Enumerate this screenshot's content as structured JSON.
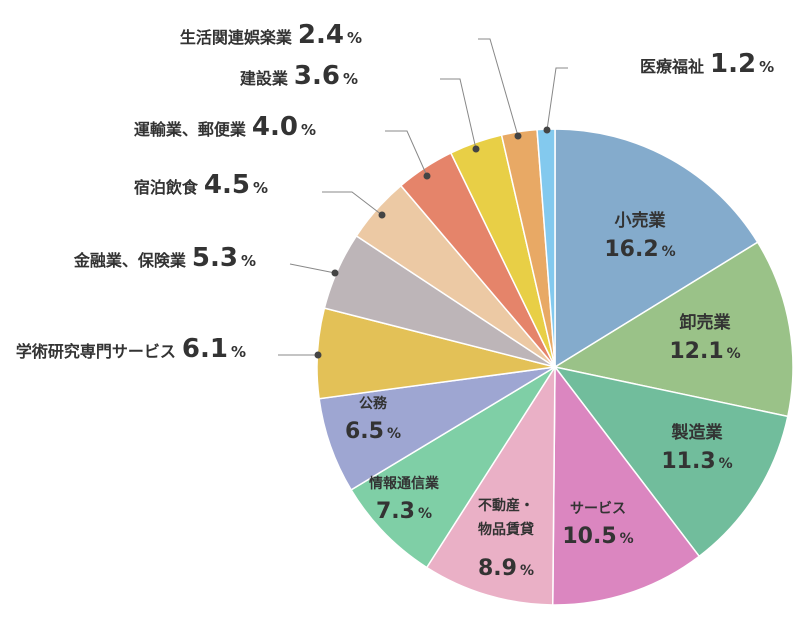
{
  "chart_data": {
    "type": "pie",
    "title": "",
    "unit": "%",
    "start_angle_deg": 0,
    "direction": "clockwise",
    "slices": [
      {
        "label": "小売業",
        "value": 16.2,
        "color": "#84ABCC"
      },
      {
        "label": "卸売業",
        "value": 12.1,
        "color": "#9AC288"
      },
      {
        "label": "製造業",
        "value": 11.3,
        "color": "#71BD9C"
      },
      {
        "label": "サービス",
        "value": 10.5,
        "color": "#DB86C0"
      },
      {
        "label": "不動産・物品賃貸",
        "value": 8.9,
        "color": "#EAB0C6"
      },
      {
        "label": "情報通信業",
        "value": 7.3,
        "color": "#7FCFA6"
      },
      {
        "label": "公務",
        "value": 6.5,
        "color": "#9EA6D2"
      },
      {
        "label": "学術研究専門サービス",
        "value": 6.1,
        "color": "#E3C157"
      },
      {
        "label": "金融業、保険業",
        "value": 5.3,
        "color": "#BDB5B8"
      },
      {
        "label": "宿泊飲食",
        "value": 4.5,
        "color": "#ECC9A4"
      },
      {
        "label": "運輸業、郵便業",
        "value": 4.0,
        "color": "#E5846A"
      },
      {
        "label": "建設業",
        "value": 3.6,
        "color": "#E8CF46"
      },
      {
        "label": "生活関連娯楽業",
        "value": 2.4,
        "color": "#E8A965"
      },
      {
        "label": "医療福祉",
        "value": 1.2,
        "color": "#83C9EE"
      }
    ],
    "legend": "none"
  }
}
